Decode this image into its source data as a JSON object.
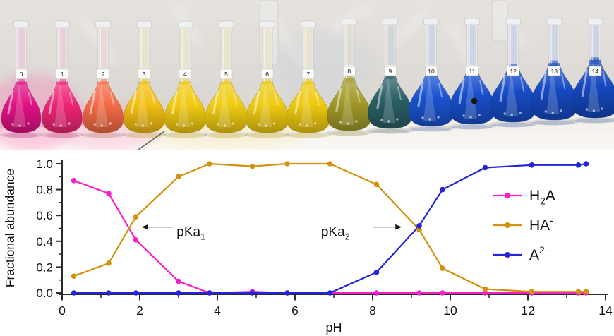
{
  "photo": {
    "flasks": [
      {
        "label": "0",
        "liquid": "#e01283"
      },
      {
        "label": "1",
        "liquid": "#ef2574"
      },
      {
        "label": "2",
        "liquid": "#f56b47"
      },
      {
        "label": "3",
        "liquid": "#f3be12"
      },
      {
        "label": "4",
        "liquid": "#f1ca10"
      },
      {
        "label": "5",
        "liquid": "#f0cc12"
      },
      {
        "label": "6",
        "liquid": "#efca12"
      },
      {
        "label": "7",
        "liquid": "#eec90f"
      },
      {
        "label": "8",
        "liquid": "#a29a28"
      },
      {
        "label": "9",
        "liquid": "#2b5f66"
      },
      {
        "label": "10",
        "liquid": "#1a53d2"
      },
      {
        "label": "11",
        "liquid": "#184fcc"
      },
      {
        "label": "12",
        "liquid": "#174cc6"
      },
      {
        "label": "13",
        "liquid": "#164ac2"
      },
      {
        "label": "14",
        "liquid": "#1548bd"
      }
    ]
  },
  "chart_data": {
    "type": "line",
    "title": "",
    "xlabel": "pH",
    "ylabel": "Fractional abundance",
    "xlim": [
      0,
      14
    ],
    "ylim": [
      0.0,
      1.0
    ],
    "grid": false,
    "legend_position": "right-center",
    "x_major_ticks": [
      0,
      2,
      4,
      6,
      8,
      10,
      12,
      14
    ],
    "x_minor_ticks": [
      1,
      3,
      5,
      7,
      9,
      11,
      13
    ],
    "y_major_ticks": [
      0.0,
      0.2,
      0.4,
      0.6,
      0.8,
      1.0
    ],
    "y_minor_ticks": [
      0.1,
      0.3,
      0.5,
      0.7,
      0.9
    ],
    "x": [
      0.3,
      1.2,
      1.9,
      3.0,
      3.8,
      4.9,
      5.8,
      6.9,
      8.1,
      9.2,
      9.8,
      10.9,
      12.1,
      13.3,
      13.5
    ],
    "series": [
      {
        "key": "H2A",
        "color": "#f920c5",
        "label_parts": [
          [
            "n",
            "H"
          ],
          [
            "sub",
            "2"
          ],
          [
            "n",
            "A"
          ]
        ],
        "values": [
          0.87,
          0.77,
          0.41,
          0.09,
          0.0,
          0.01,
          0.0,
          0.0,
          0.0,
          0.0,
          0.0,
          0.0,
          0.0,
          0.0,
          0.0
        ]
      },
      {
        "key": "HA-",
        "color": "#d3920e",
        "label_parts": [
          [
            "n",
            "HA"
          ],
          [
            "sup",
            "-"
          ]
        ],
        "values": [
          0.13,
          0.23,
          0.59,
          0.9,
          1.0,
          0.98,
          1.0,
          1.0,
          0.84,
          0.49,
          0.19,
          0.03,
          0.01,
          0.01,
          0.01
        ]
      },
      {
        "key": "A2-",
        "color": "#2424da",
        "label_parts": [
          [
            "n",
            "A"
          ],
          [
            "sup",
            "2-"
          ]
        ],
        "values": [
          0.0,
          0.0,
          0.0,
          0.0,
          0.0,
          0.0,
          0.0,
          0.0,
          0.16,
          0.52,
          0.8,
          0.97,
          0.99,
          0.99,
          1.0
        ]
      }
    ],
    "annotations": [
      {
        "name": "pKa1",
        "parts": [
          [
            "n",
            "pKa"
          ],
          [
            "sub",
            "1"
          ]
        ],
        "arrow_dir": "left",
        "arrow_tip_ph": 2.05,
        "arrow_tail_ph": 2.85,
        "y": 0.51,
        "label_ph": 2.95
      },
      {
        "name": "pKa2",
        "parts": [
          [
            "n",
            "pKa"
          ],
          [
            "sub",
            "2"
          ]
        ],
        "arrow_dir": "right",
        "arrow_tip_ph": 8.75,
        "arrow_tail_ph": 8.0,
        "y": 0.51,
        "label_ph": 6.67
      }
    ]
  }
}
